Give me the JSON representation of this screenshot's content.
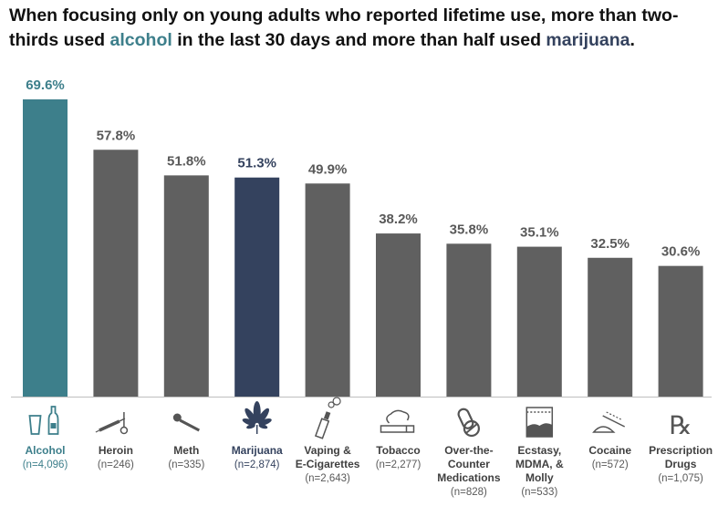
{
  "title": {
    "part1": "When focusing only on young adults who reported lifetime use, more than two-thirds used ",
    "highlight1": "alcohol",
    "part2": " in the last 30 days and more than half used ",
    "highlight2": "marijuana",
    "part3": "."
  },
  "colors": {
    "alcohol": "#3d7f8b",
    "marijuana": "#34425e",
    "default": "#606060",
    "label_default": "#595959",
    "n_color": "#595959",
    "axis": "#bfbfbf"
  },
  "chart_data": {
    "type": "bar",
    "ylim": [
      0,
      70
    ],
    "grid": false,
    "value_suffix": "%",
    "categories": [
      {
        "label": [
          "Alcohol"
        ],
        "n": [
          "(n=4,096)"
        ],
        "value": 69.6,
        "display": "69.6%",
        "color_key": "alcohol",
        "icon": "bottle-and-glass-icon"
      },
      {
        "label": [
          "Heroin"
        ],
        "n": [
          "(n=246)"
        ],
        "value": 57.8,
        "display": "57.8%",
        "color_key": "default",
        "icon": "syringe-icon"
      },
      {
        "label": [
          "Meth"
        ],
        "n": [
          "(n=335)"
        ],
        "value": 51.8,
        "display": "51.8%",
        "color_key": "default",
        "icon": "meth-pipe-icon"
      },
      {
        "label": [
          "Marijuana"
        ],
        "n": [
          "(n=2,874)"
        ],
        "value": 51.3,
        "display": "51.3%",
        "color_key": "marijuana",
        "icon": "cannabis-leaf-icon"
      },
      {
        "label": [
          "Vaping &",
          "E-Cigarettes"
        ],
        "n": [
          "(n=2,643)"
        ],
        "value": 49.9,
        "display": "49.9%",
        "color_key": "default",
        "icon": "vape-pen-icon"
      },
      {
        "label": [
          "Tobacco"
        ],
        "n": [
          "(n=2,277)"
        ],
        "value": 38.2,
        "display": "38.2%",
        "color_key": "default",
        "icon": "cigarette-icon"
      },
      {
        "label": [
          "Over-the-",
          "Counter",
          "Medications"
        ],
        "n": [
          "(n=828)"
        ],
        "value": 35.8,
        "display": "35.8%",
        "color_key": "default",
        "icon": "pills-icon"
      },
      {
        "label": [
          "Ecstasy,",
          "MDMA, &",
          "Molly"
        ],
        "n": [
          "(n=533)"
        ],
        "value": 35.1,
        "display": "35.1%",
        "color_key": "default",
        "icon": "powder-bag-icon"
      },
      {
        "label": [
          "Cocaine"
        ],
        "n": [
          "(n=572)"
        ],
        "value": 32.5,
        "display": "32.5%",
        "color_key": "default",
        "icon": "cocaine-lines-icon"
      },
      {
        "label": [
          "Prescription",
          "Drugs"
        ],
        "n": [
          "(n=1,075)"
        ],
        "value": 30.6,
        "display": "30.6%",
        "color_key": "default",
        "icon": "rx-symbol-icon"
      }
    ]
  }
}
